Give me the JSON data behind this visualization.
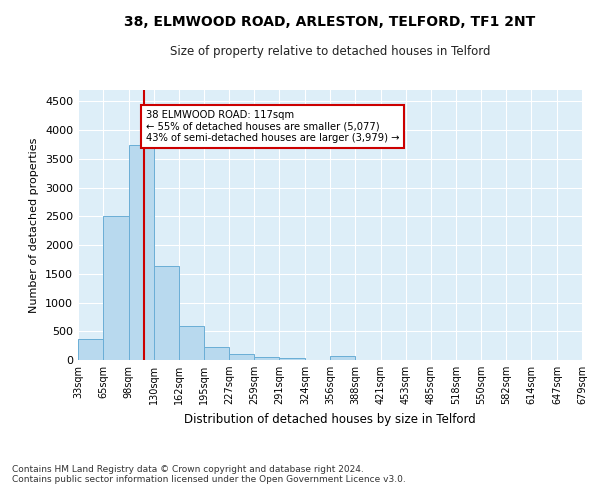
{
  "title1": "38, ELMWOOD ROAD, ARLESTON, TELFORD, TF1 2NT",
  "title2": "Size of property relative to detached houses in Telford",
  "xlabel": "Distribution of detached houses by size in Telford",
  "ylabel": "Number of detached properties",
  "bin_edges": [
    33,
    65,
    98,
    130,
    162,
    195,
    227,
    259,
    291,
    324,
    356,
    388,
    421,
    453,
    485,
    518,
    550,
    582,
    614,
    647,
    679
  ],
  "bin_heights": [
    370,
    2500,
    3750,
    1640,
    590,
    220,
    100,
    60,
    40,
    0,
    65,
    0,
    0,
    0,
    0,
    0,
    0,
    0,
    0,
    0
  ],
  "bar_color": "#b8d9ee",
  "bar_edge_color": "#6aaed6",
  "vline_x": 117,
  "vline_color": "#cc0000",
  "annotation_text": "38 ELMWOOD ROAD: 117sqm\n← 55% of detached houses are smaller (5,077)\n43% of semi-detached houses are larger (3,979) →",
  "annotation_box_color": "#cc0000",
  "ylim": [
    0,
    4700
  ],
  "yticks": [
    0,
    500,
    1000,
    1500,
    2000,
    2500,
    3000,
    3500,
    4000,
    4500
  ],
  "footer": "Contains HM Land Registry data © Crown copyright and database right 2024.\nContains public sector information licensed under the Open Government Licence v3.0.",
  "fig_bg_color": "#ffffff",
  "plot_bg_color": "#ddeef8"
}
